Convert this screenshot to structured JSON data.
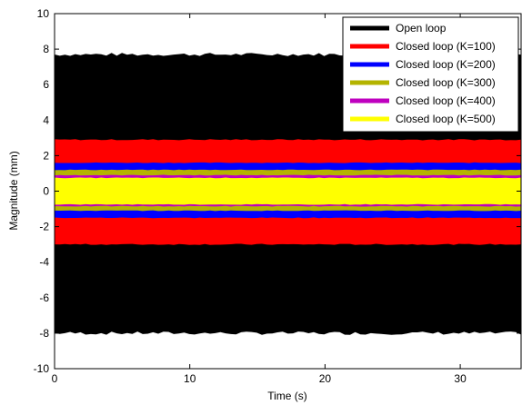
{
  "chart_data": {
    "type": "area",
    "title": "",
    "xlabel": "Time (s)",
    "ylabel": "Magnitude (mm)",
    "xlim": [
      0,
      34.5
    ],
    "ylim": [
      -10,
      10
    ],
    "xticks": [
      0,
      10,
      20,
      30
    ],
    "yticks": [
      -10,
      -8,
      -6,
      -4,
      -2,
      0,
      2,
      4,
      6,
      8,
      10
    ],
    "grid": false,
    "legend_position": "top-right",
    "series": [
      {
        "name": "Open loop",
        "color": "#000000",
        "upper": 7.7,
        "lower": -8.0
      },
      {
        "name": "Closed loop (K=100)",
        "color": "#ff0000",
        "upper": 2.9,
        "lower": -3.0
      },
      {
        "name": "Closed loop (K=200)",
        "color": "#0000ff",
        "upper": 1.6,
        "lower": -1.5
      },
      {
        "name": "Closed loop (K=300)",
        "color": "#b4b400",
        "upper": 1.2,
        "lower": -1.1
      },
      {
        "name": "Closed loop (K=400)",
        "color": "#bf00bf",
        "upper": 0.9,
        "lower": -0.85
      },
      {
        "name": "Closed loop (K=500)",
        "color": "#ffff00",
        "upper": 0.75,
        "lower": -0.75
      }
    ]
  }
}
